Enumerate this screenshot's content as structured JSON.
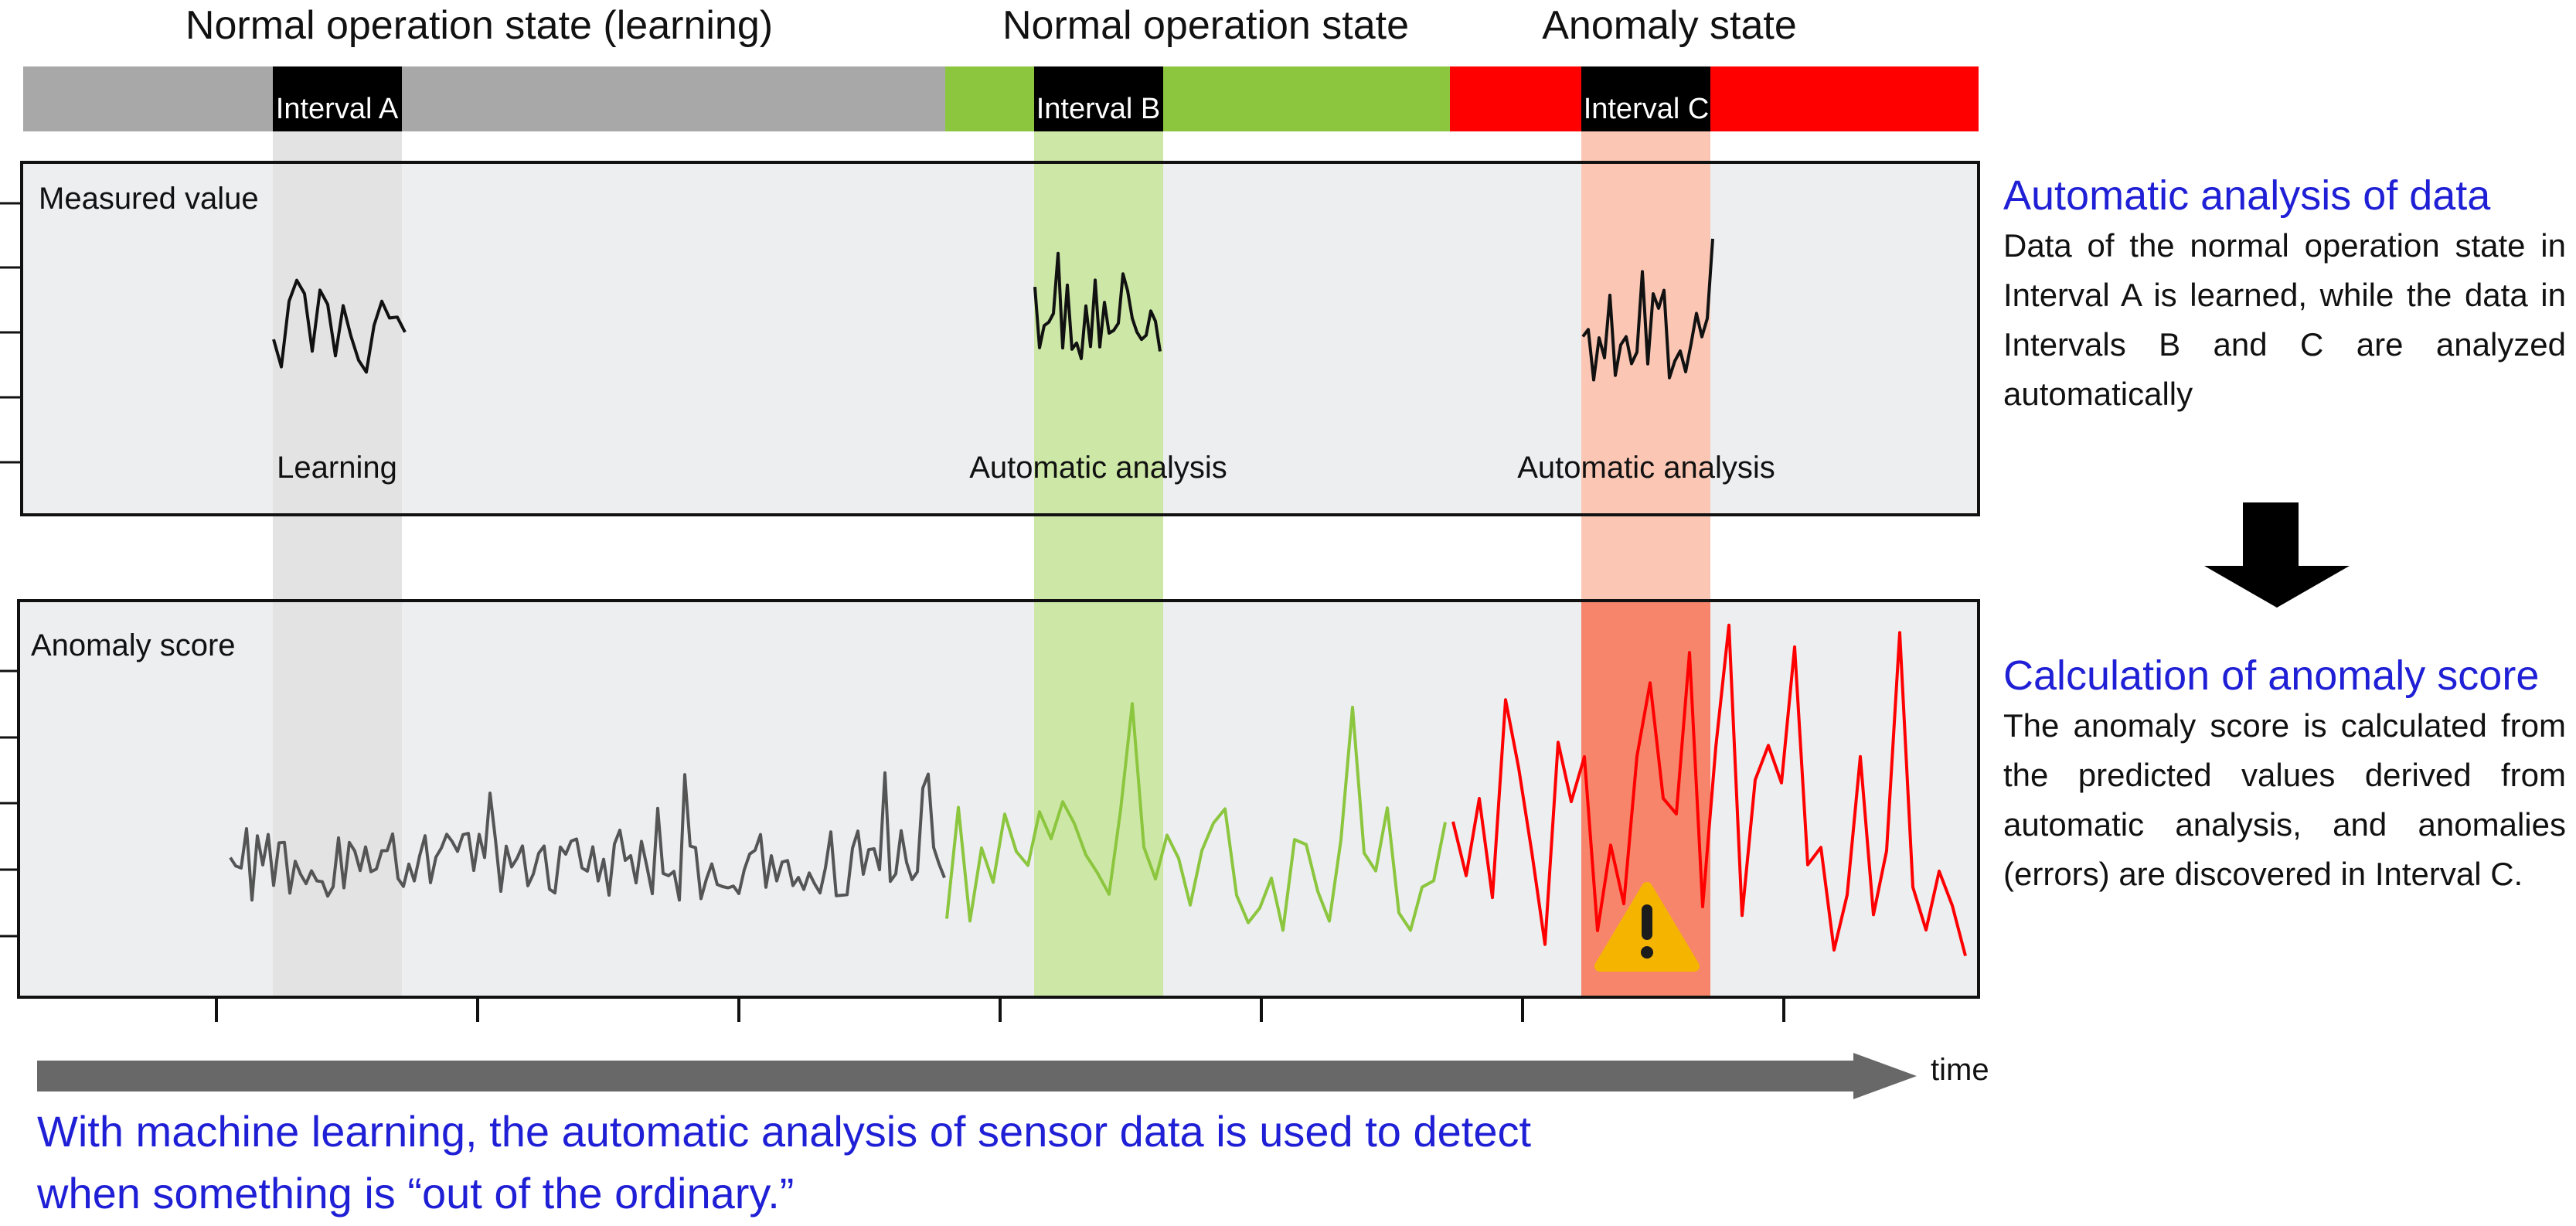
{
  "states": {
    "learning_label": "Normal operation state (learning)",
    "normal_label": "Normal operation state",
    "anomaly_label": "Anomaly state",
    "colors": {
      "learning": "#a8a8a8",
      "normal": "#8cc63f",
      "anomaly": "#ff0000"
    }
  },
  "intervals": {
    "a": {
      "label": "Interval A",
      "shade": "#e3e3e3"
    },
    "b": {
      "label": "Interval B",
      "shade": "#cde8a6"
    },
    "c": {
      "label": "Interval C",
      "shade": "#fbc7b4",
      "shade_strong": "#f7856c"
    }
  },
  "panel_measured": {
    "label": "Measured value",
    "learning_note": "Learning",
    "analysis_note_b": "Automatic analysis",
    "analysis_note_c": "Automatic analysis"
  },
  "panel_anomaly": {
    "label": "Anomaly score",
    "warning_icon": "warning-triangle-icon"
  },
  "side": {
    "title1": "Automatic analysis of data",
    "body1": "Data of the normal operation state in Interval A is learned, while the data in Intervals B and C are analyzed automatically",
    "arrow_icon": "down-arrow-icon",
    "title2": "Calculation of anomaly score",
    "body2": "The anomaly score is calculated from the predicted values derived from automatic analysis, and anomalies (errors) are discovered in Interval C."
  },
  "time_label": "time",
  "caption": {
    "line1": "With machine learning, the automatic analysis of sensor data is used to detect",
    "line2": "when something is “out of the ordinary.”"
  }
}
